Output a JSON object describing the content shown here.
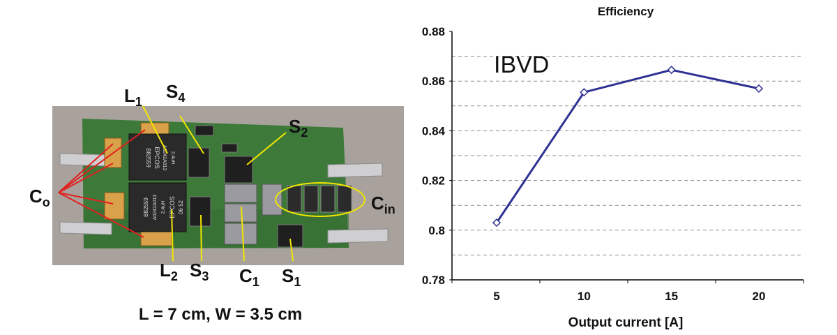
{
  "photo": {
    "labels": {
      "co": {
        "main": "C",
        "sub": "o"
      },
      "l1": {
        "main": "L",
        "sub": "1"
      },
      "s4": {
        "main": "S",
        "sub": "4"
      },
      "s2": {
        "main": "S",
        "sub": "2"
      },
      "cin": {
        "main": "C",
        "sub": "in"
      },
      "l2": {
        "main": "L",
        "sub": "2"
      },
      "s3": {
        "main": "S",
        "sub": "3"
      },
      "c1": {
        "main": "C",
        "sub": "1"
      },
      "s1": {
        "main": "S",
        "sub": "1"
      }
    },
    "component_text": {
      "inductor_brand": "EPCOS",
      "inductor_part": "B82559",
      "inductor_value": "2.4uH",
      "inductor_code": "A0242A013",
      "inductor_date": "06 52"
    },
    "caption": "L = 7 cm, W = 3.5 cm"
  },
  "chart_data": {
    "type": "line",
    "title": "Efficiency",
    "xlabel": "Output current [A]",
    "ylabel": "",
    "categories": [
      "5",
      "10",
      "15",
      "20"
    ],
    "series": [
      {
        "values": [
          0.803,
          0.8555,
          0.8645,
          0.857
        ],
        "color": "#2e3192",
        "marker": "diamond"
      }
    ],
    "ylim": [
      0.78,
      0.88
    ],
    "yticks": [
      "0.88",
      "0.86",
      "0.84",
      "0.82",
      "0.8",
      "0.78"
    ],
    "ytick_values": [
      0.88,
      0.86,
      0.84,
      0.82,
      0.8,
      0.78
    ],
    "minor_grid_values": [
      0.87,
      0.86,
      0.85,
      0.84,
      0.83,
      0.82,
      0.81,
      0.8,
      0.79
    ],
    "annotation": "IBVD",
    "grid": "dashed horizontal"
  }
}
